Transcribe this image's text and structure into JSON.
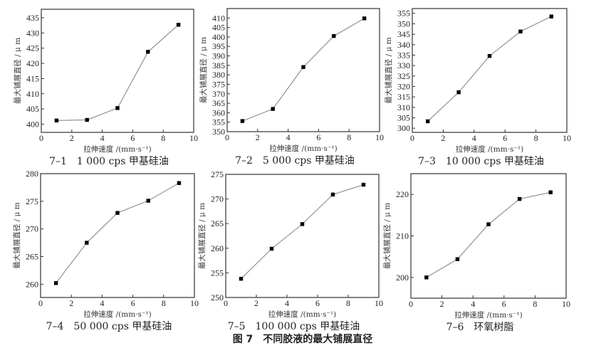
{
  "figure_title": "图 7　不同胶液的最大铺展直径",
  "chart_data": [
    {
      "type": "line",
      "caption": "7–1　1 000 cps 甲基硅油",
      "xlabel": "拉伸速度 /(mm·s⁻¹)",
      "ylabel": "最大铺展直径 / μ m",
      "x": [
        1,
        3,
        5,
        7,
        9
      ],
      "values": [
        401.2,
        401.4,
        405.3,
        423.8,
        432.7
      ],
      "xlim": [
        0,
        10
      ],
      "ylim": [
        397.3,
        437.8
      ],
      "xticks": [
        0,
        2,
        4,
        6,
        8,
        10
      ],
      "yticks": [
        400,
        405,
        410,
        415,
        420,
        425,
        430,
        435
      ],
      "grid": false,
      "line_color": "#8a8a8a",
      "marker_color": "#000000"
    },
    {
      "type": "line",
      "caption": "7–2　5 000 cps 甲基硅油",
      "xlabel": "拉伸速度 /(mm·s⁻¹)",
      "ylabel": "最大铺展直径 / μ m",
      "x": [
        1,
        3,
        5,
        7,
        9
      ],
      "values": [
        355.6,
        362.0,
        384.1,
        400.5,
        409.8
      ],
      "xlim": [
        0,
        10
      ],
      "ylim": [
        350,
        415
      ],
      "xticks": [
        0,
        2,
        4,
        6,
        8,
        10
      ],
      "yticks": [
        350,
        355,
        360,
        365,
        370,
        375,
        380,
        385,
        390,
        395,
        400,
        405,
        410
      ],
      "grid": false,
      "line_color": "#8a8a8a",
      "marker_color": "#000000"
    },
    {
      "type": "line",
      "caption": "7–3　10 000 cps 甲基硅油",
      "xlabel": "拉伸速度 /(mm·s⁻¹)",
      "ylabel": "最大铺展直径 / μ m",
      "x": [
        1,
        3,
        5,
        7,
        9
      ],
      "values": [
        303.3,
        317.2,
        334.6,
        346.3,
        353.5
      ],
      "xlim": [
        0,
        10
      ],
      "ylim": [
        298,
        357.3
      ],
      "xticks": [
        0,
        2,
        4,
        6,
        8,
        10
      ],
      "yticks": [
        300,
        305,
        310,
        315,
        320,
        325,
        330,
        335,
        340,
        345,
        350,
        355
      ],
      "grid": false,
      "line_color": "#8a8a8a",
      "marker_color": "#000000"
    },
    {
      "type": "line",
      "caption": "7–4　50 000 cps 甲基硅油",
      "xlabel": "拉伸速度 /(mm·s⁻¹)",
      "ylabel": "最大铺展直径 / μ m",
      "x": [
        1,
        3,
        5,
        7,
        9
      ],
      "values": [
        260.2,
        267.5,
        272.9,
        275.1,
        278.3
      ],
      "xlim": [
        0,
        10
      ],
      "ylim": [
        257.6,
        280
      ],
      "xticks": [
        0,
        2,
        4,
        6,
        8,
        10
      ],
      "yticks": [
        260,
        265,
        270,
        275,
        280
      ],
      "grid": false,
      "line_color": "#8a8a8a",
      "marker_color": "#000000"
    },
    {
      "type": "line",
      "caption": "7–5　100 000 cps 甲基硅油",
      "xlabel": "拉伸速度 /(mm·s⁻¹)",
      "ylabel": "最大铺展直径 / μ m",
      "x": [
        1,
        3,
        5,
        7,
        9
      ],
      "values": [
        253.8,
        259.9,
        264.9,
        270.9,
        272.9
      ],
      "xlim": [
        0,
        10
      ],
      "ylim": [
        250,
        275
      ],
      "xticks": [
        0,
        2,
        4,
        6,
        8,
        10
      ],
      "yticks": [
        250,
        255,
        260,
        265,
        270,
        275
      ],
      "grid": false,
      "line_color": "#8a8a8a",
      "marker_color": "#000000"
    },
    {
      "type": "line",
      "caption": "7–6　环氧树脂",
      "xlabel": "拉伸速度 /(mm·s⁻¹)",
      "ylabel": "最大铺展直径 / μ m",
      "x": [
        1,
        3,
        5,
        7,
        9
      ],
      "values": [
        200.0,
        204.4,
        212.8,
        218.9,
        220.5
      ],
      "xlim": [
        0,
        10
      ],
      "ylim": [
        195,
        225
      ],
      "xticks": [
        0,
        2,
        4,
        6,
        8,
        10
      ],
      "yticks": [
        200,
        210,
        220
      ],
      "grid": false,
      "line_color": "#8a8a8a",
      "marker_color": "#000000"
    }
  ]
}
